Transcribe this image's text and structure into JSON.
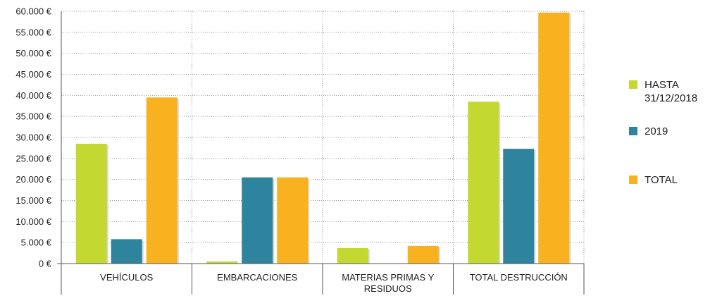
{
  "chart_data": {
    "type": "bar",
    "categories": [
      "VEHÍCULOS",
      "EMBARCACIONES",
      "MATERIAS PRIMAS Y RESIDUOS",
      "TOTAL DESTRUCCIÓN"
    ],
    "category_lines": [
      [
        "VEHÍCULOS"
      ],
      [
        "EMBARCACIONES"
      ],
      [
        "MATERIAS PRIMAS Y",
        "RESIDUOS"
      ],
      [
        "TOTAL DESTRUCCIÓN"
      ]
    ],
    "series": [
      {
        "name": "HASTA 31/12/2018",
        "name_lines": [
          "HASTA",
          "31/12/2018"
        ],
        "color": "#c3d831",
        "values": [
          28500,
          500,
          3700,
          38500
        ]
      },
      {
        "name": "2019",
        "name_lines": [
          "2019"
        ],
        "color": "#2e849c",
        "values": [
          5800,
          20500,
          0,
          27300
        ]
      },
      {
        "name": "TOTAL",
        "name_lines": [
          "TOTAL"
        ],
        "color": "#f8b11f",
        "values": [
          39500,
          20500,
          4200,
          59700
        ]
      }
    ],
    "y_ticks": [
      "0 €",
      "5.000 €",
      "10.000 €",
      "15.000 €",
      "20.000 €",
      "25.000 €",
      "30.000 €",
      "35.000 €",
      "40.000 €",
      "45.000 €",
      "50.000 €",
      "55.000 €",
      "60.000 €"
    ],
    "y_tick_values": [
      0,
      5000,
      10000,
      15000,
      20000,
      25000,
      30000,
      35000,
      40000,
      45000,
      50000,
      55000,
      60000
    ],
    "ylim": [
      0,
      60000
    ],
    "grid": true,
    "legend_position": "right",
    "title": "",
    "xlabel": "",
    "ylabel": ""
  }
}
